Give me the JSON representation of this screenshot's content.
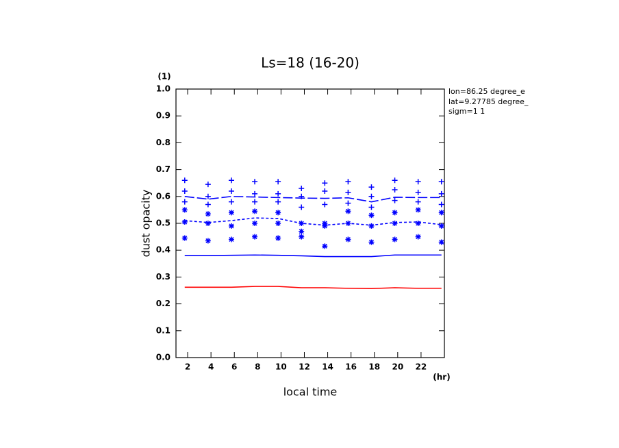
{
  "chart_data": {
    "type": "line",
    "title": "Ls=18 (16-20)",
    "x_label": "local time",
    "x_unit": "(hr)",
    "y_label": "dust opacity",
    "y_unit": "(1)",
    "annotations": [
      "lon=86.25 degree_e",
      "lat=9.27785 degree_",
      "sigm=1 1"
    ],
    "xlim": [
      1,
      24
    ],
    "xticks": [
      2,
      4,
      6,
      8,
      10,
      12,
      14,
      16,
      18,
      20,
      22
    ],
    "ylim": [
      0,
      1
    ],
    "yticks": [
      {
        "value": 0,
        "label": "0.0"
      },
      {
        "value": 0.1,
        "label": "0.1"
      },
      {
        "value": 0.2,
        "label": "0.2"
      },
      {
        "value": 0.3,
        "label": "0.3"
      },
      {
        "value": 0.4,
        "label": "0.4"
      },
      {
        "value": 0.5,
        "label": "0.5"
      },
      {
        "value": 0.6,
        "label": "0.6"
      },
      {
        "value": 0.7,
        "label": "0.7"
      },
      {
        "value": 0.8,
        "label": "0.8"
      },
      {
        "value": 0.9,
        "label": "0.9"
      },
      {
        "value": 1,
        "label": "1.0"
      }
    ],
    "x": [
      1.75,
      3.75,
      5.75,
      7.75,
      9.75,
      11.75,
      13.75,
      15.75,
      17.75,
      19.75,
      21.75,
      23.75
    ],
    "series": [
      {
        "color": "#ff0000",
        "linestyle": "solid",
        "values": [
          0.262,
          0.262,
          0.262,
          0.265,
          0.265,
          0.26,
          0.26,
          0.258,
          0.257,
          0.26,
          0.258,
          0.258
        ]
      },
      {
        "color": "#0000ff",
        "linestyle": "solid",
        "values": [
          0.38,
          0.38,
          0.381,
          0.382,
          0.381,
          0.379,
          0.376,
          0.376,
          0.376,
          0.382,
          0.382,
          0.382
        ]
      },
      {
        "color": "#0000ff",
        "linestyle": "dashed",
        "values": [
          0.51,
          0.503,
          0.51,
          0.52,
          0.518,
          0.5,
          0.493,
          0.5,
          0.493,
          0.503,
          0.505,
          0.495
        ]
      },
      {
        "color": "#0000ff",
        "linestyle": "longdash",
        "values": [
          0.6,
          0.59,
          0.6,
          0.598,
          0.596,
          0.594,
          0.593,
          0.595,
          0.58,
          0.597,
          0.596,
          0.596
        ]
      }
    ],
    "points": [
      {
        "color": "#0000ff",
        "marker": "plus",
        "x": [
          1.75,
          1.75,
          1.75,
          3.75,
          3.75,
          3.75,
          5.75,
          5.75,
          5.75,
          7.75,
          7.75,
          7.75,
          9.75,
          9.75,
          9.75,
          11.75,
          11.75,
          11.75,
          13.75,
          13.75,
          13.75,
          15.75,
          15.75,
          15.75,
          17.75,
          17.75,
          17.75,
          19.75,
          19.75,
          19.75,
          21.75,
          21.75,
          21.75,
          23.75,
          23.75,
          23.75
        ],
        "values": [
          0.66,
          0.62,
          0.58,
          0.645,
          0.6,
          0.57,
          0.66,
          0.62,
          0.58,
          0.655,
          0.61,
          0.58,
          0.655,
          0.61,
          0.58,
          0.63,
          0.6,
          0.56,
          0.65,
          0.62,
          0.57,
          0.655,
          0.615,
          0.575,
          0.635,
          0.6,
          0.56,
          0.66,
          0.625,
          0.585,
          0.655,
          0.615,
          0.58,
          0.655,
          0.61,
          0.57
        ]
      },
      {
        "color": "#0000ff",
        "marker": "asterisk",
        "x": [
          1.75,
          1.75,
          1.75,
          3.75,
          3.75,
          3.75,
          5.75,
          5.75,
          5.75,
          7.75,
          7.75,
          7.75,
          9.75,
          9.75,
          9.75,
          11.75,
          11.75,
          11.75,
          13.75,
          13.75,
          13.75,
          15.75,
          15.75,
          15.75,
          17.75,
          17.75,
          17.75,
          19.75,
          19.75,
          19.75,
          21.75,
          21.75,
          21.75,
          23.75,
          23.75,
          23.75
        ],
        "values": [
          0.55,
          0.505,
          0.445,
          0.535,
          0.5,
          0.435,
          0.54,
          0.49,
          0.44,
          0.545,
          0.5,
          0.45,
          0.54,
          0.5,
          0.445,
          0.5,
          0.47,
          0.45,
          0.5,
          0.49,
          0.415,
          0.545,
          0.5,
          0.44,
          0.53,
          0.49,
          0.43,
          0.54,
          0.5,
          0.44,
          0.55,
          0.5,
          0.45,
          0.54,
          0.49,
          0.43
        ]
      }
    ]
  }
}
